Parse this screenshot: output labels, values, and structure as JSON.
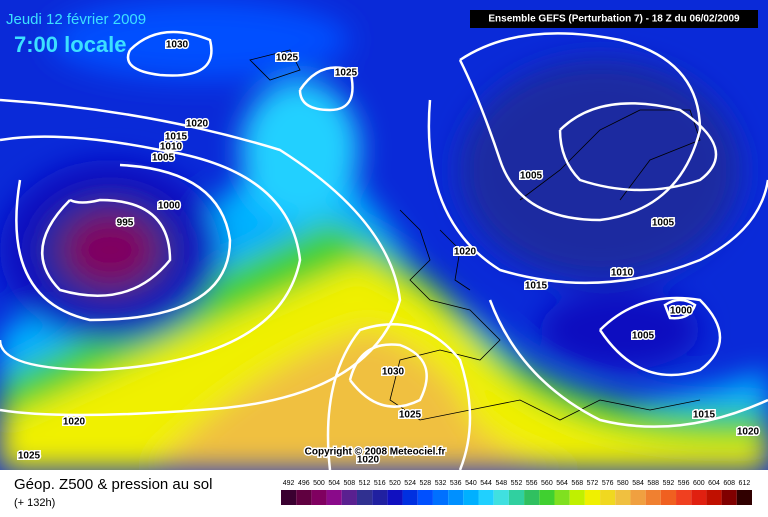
{
  "header": {
    "date": "Jeudi 12 février 2009",
    "time": "7:00 locale",
    "run": "Ensemble GEFS (Perturbation 7)  -  18 Z du 06/02/2009"
  },
  "isobar_labels": [
    1030,
    1025,
    1025,
    1020,
    1015,
    1010,
    1005,
    1000,
    995,
    1020,
    1015,
    1005,
    1005,
    1010,
    1000,
    1005,
    1030,
    1025,
    1020,
    1015,
    1020,
    1020,
    1025
  ],
  "copyright": "Copyright © 2008 Meteociel.fr",
  "footer": {
    "title": "Géop. Z500 & pression au sol",
    "lead": "(+ 132h)"
  },
  "legend": {
    "levels": [
      492,
      496,
      500,
      504,
      508,
      512,
      516,
      520,
      524,
      528,
      532,
      536,
      540,
      544,
      548,
      552,
      556,
      560,
      564,
      568,
      572,
      576,
      580,
      584,
      588,
      592,
      596,
      600,
      604,
      608,
      612
    ],
    "colors": [
      "#3a0030",
      "#600040",
      "#800060",
      "#8a0a8a",
      "#5a2090",
      "#303090",
      "#2020a0",
      "#1010c0",
      "#0030e0",
      "#0050ff",
      "#0070ff",
      "#0090ff",
      "#00b0ff",
      "#20d0ff",
      "#40e0e0",
      "#30d0a0",
      "#30c060",
      "#40d030",
      "#80e020",
      "#c0f000",
      "#f0f000",
      "#f0d820",
      "#f0c040",
      "#f0a040",
      "#f08030",
      "#f06020",
      "#f04020",
      "#e02010",
      "#c01000",
      "#800000",
      "#300000"
    ]
  }
}
